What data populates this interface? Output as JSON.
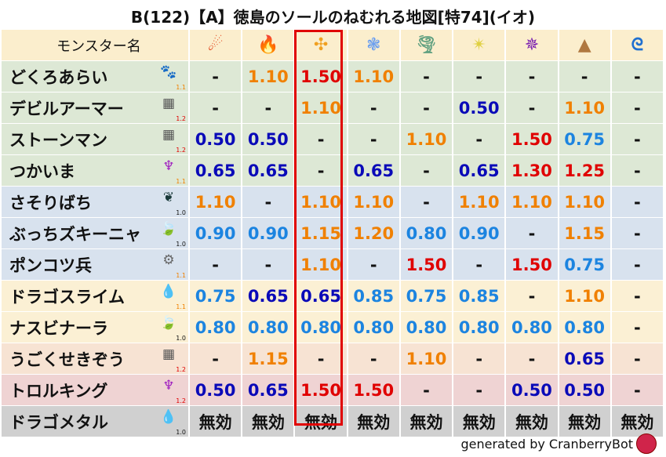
{
  "title": "B(122)【A】徳島のソールのねむれる地図[特74](イオ)",
  "header": {
    "name_label": "モンスター名",
    "elements": [
      {
        "icon": "fire-ball-icon",
        "glyph": "☄",
        "color": "#e03a10"
      },
      {
        "icon": "flame-icon",
        "glyph": "🔥",
        "color": "#f04010"
      },
      {
        "icon": "explosion-icon",
        "glyph": "✣",
        "color": "#f0a020"
      },
      {
        "icon": "ice-snowflake-icon",
        "glyph": "❃",
        "color": "#6a9ef0"
      },
      {
        "icon": "wind-tornado-icon",
        "glyph": "🌪",
        "color": "#60a080"
      },
      {
        "icon": "light-star-icon",
        "glyph": "✴",
        "color": "#e0d040"
      },
      {
        "icon": "dark-shuriken-icon",
        "glyph": "✵",
        "color": "#7a20b0"
      },
      {
        "icon": "earth-mountain-icon",
        "glyph": "▲",
        "color": "#b07840"
      },
      {
        "icon": "water-wave-icon",
        "glyph": "ᘓ",
        "color": "#2070d0"
      }
    ]
  },
  "rows": [
    {
      "name": "どくろあらい",
      "bg": "#dde8d5",
      "icon": "paw-icon",
      "glyph": "🐾",
      "icolor": "#e08a00",
      "level": "1.1",
      "lcolor": "#f08000",
      "values": [
        "-",
        "1.10",
        "1.50",
        "1.10",
        "-",
        "-",
        "-",
        "-",
        "-"
      ]
    },
    {
      "name": "デビルアーマー",
      "bg": "#dde8d5",
      "icon": "brick-icon",
      "glyph": "▦",
      "icolor": "#555",
      "level": "1.2",
      "lcolor": "#e00000",
      "values": [
        "-",
        "-",
        "1.10",
        "-",
        "-",
        "0.50",
        "-",
        "1.10",
        "-"
      ]
    },
    {
      "name": "ストーンマン",
      "bg": "#dde8d5",
      "icon": "brick-icon",
      "glyph": "▦",
      "icolor": "#555",
      "level": "1.2",
      "lcolor": "#e00000",
      "values": [
        "0.50",
        "0.50",
        "-",
        "-",
        "1.10",
        "-",
        "1.50",
        "0.75",
        "-"
      ]
    },
    {
      "name": "つかいま",
      "bg": "#dde8d5",
      "icon": "trident-icon",
      "glyph": "♆",
      "icolor": "#a020c0",
      "level": "1.1",
      "lcolor": "#f08000",
      "values": [
        "0.65",
        "0.65",
        "-",
        "0.65",
        "-",
        "0.65",
        "1.30",
        "1.25",
        "-"
      ]
    },
    {
      "name": "さそりばち",
      "bg": "#d8e2ee",
      "icon": "insect-icon",
      "glyph": "❦",
      "icolor": "#1a3a3a",
      "level": "1.0",
      "lcolor": "#111",
      "values": [
        "1.10",
        "-",
        "1.10",
        "1.10",
        "-",
        "1.10",
        "1.10",
        "1.10",
        "-"
      ]
    },
    {
      "name": "ぶっちズキーニャ",
      "bg": "#d8e2ee",
      "icon": "leaf-icon",
      "glyph": "🍃",
      "icolor": "#50b030",
      "level": "1.0",
      "lcolor": "#111",
      "values": [
        "0.90",
        "0.90",
        "1.15",
        "1.20",
        "0.80",
        "0.90",
        "-",
        "1.15",
        "-"
      ]
    },
    {
      "name": "ポンコツ兵",
      "bg": "#d8e2ee",
      "icon": "gear-icon",
      "glyph": "⚙",
      "icolor": "#666",
      "level": "1.1",
      "lcolor": "#f08000",
      "values": [
        "-",
        "-",
        "1.10",
        "-",
        "1.50",
        "-",
        "1.50",
        "0.75",
        "-"
      ]
    },
    {
      "name": "ドラゴスライム",
      "bg": "#fbf0d4",
      "icon": "slime-icon",
      "glyph": "💧",
      "icolor": "#2a8ae0",
      "level": "1.1",
      "lcolor": "#f08000",
      "values": [
        "0.75",
        "0.65",
        "0.65",
        "0.85",
        "0.75",
        "0.85",
        "-",
        "1.10",
        "-"
      ]
    },
    {
      "name": "ナスビナーラ",
      "bg": "#fbf0d4",
      "icon": "leaf-icon",
      "glyph": "🍃",
      "icolor": "#50b030",
      "level": "1.0",
      "lcolor": "#111",
      "values": [
        "0.80",
        "0.80",
        "0.80",
        "0.80",
        "0.80",
        "0.80",
        "0.80",
        "0.80",
        "-"
      ]
    },
    {
      "name": "うごくせきぞう",
      "bg": "#f7e3d3",
      "icon": "brick-icon",
      "glyph": "▦",
      "icolor": "#555",
      "level": "1.2",
      "lcolor": "#e00000",
      "values": [
        "-",
        "1.15",
        "-",
        "-",
        "1.10",
        "-",
        "-",
        "0.65",
        "-"
      ]
    },
    {
      "name": "トロルキング",
      "bg": "#efd3d3",
      "icon": "trident-icon",
      "glyph": "♆",
      "icolor": "#a020c0",
      "level": "1.2",
      "lcolor": "#e00000",
      "values": [
        "0.50",
        "0.65",
        "1.50",
        "1.50",
        "-",
        "-",
        "0.50",
        "0.50",
        "-"
      ]
    },
    {
      "name": "ドラゴメタル",
      "bg": "#d0d0d0",
      "icon": "slime-icon",
      "glyph": "💧",
      "icolor": "#2a8ae0",
      "level": "1.0",
      "lcolor": "#111",
      "values": [
        "無効",
        "無効",
        "無効",
        "無効",
        "無効",
        "無効",
        "無効",
        "無効",
        "無効"
      ]
    }
  ],
  "footer": "generated by CranberryBot",
  "header_bg": "#fbeecd"
}
